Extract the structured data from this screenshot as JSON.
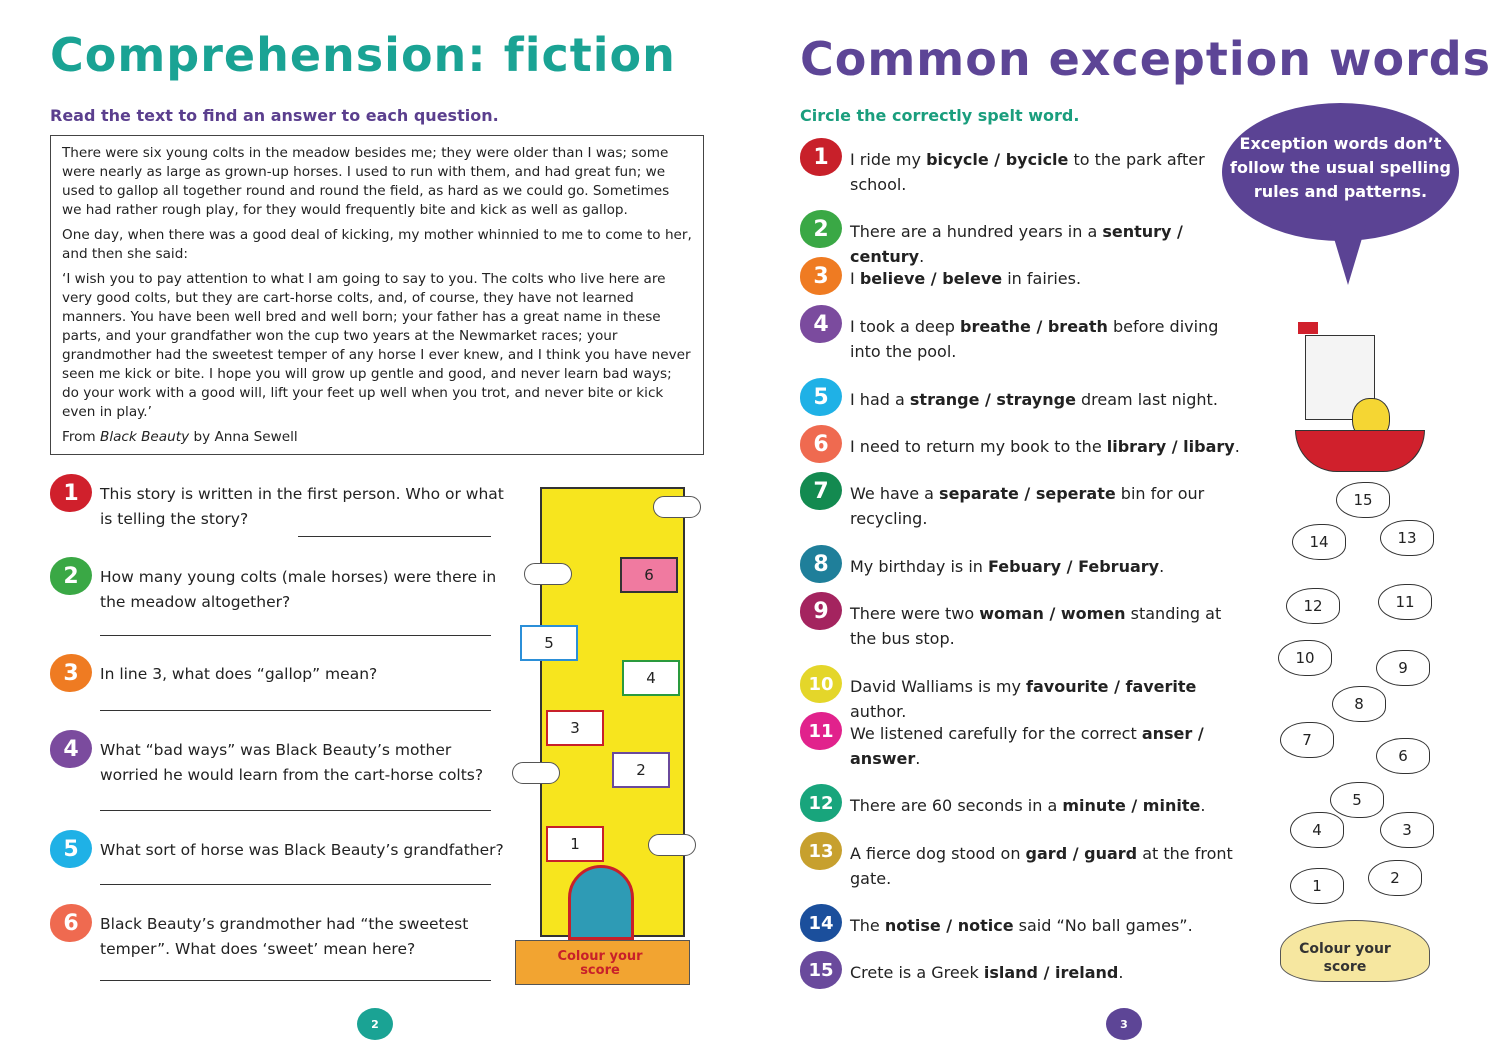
{
  "left": {
    "title": "Comprehension: fiction",
    "subtitle": "Read the text to find an answer to each question.",
    "passage": [
      "There were six young colts in the meadow besides me; they were older than I was; some were nearly as large as grown-up horses. I used to run with them, and had great fun; we used to gallop all together round and round the field, as hard as we could go. Sometimes we had rather rough play, for they would frequently bite and kick as well as gallop.",
      "One day, when there was a good deal of kicking, my mother whinnied to me to come to her, and then she said:",
      "‘I wish you to pay attention to what I am going to say to you. The colts who live here are very good colts, but they are cart-horse colts, and, of course, they have not learned manners. You have been well bred and well born; your father has a great name in these parts, and your grandfather won the cup two years at the Newmarket races; your grandmother had the sweetest temper of any horse I ever knew, and I think you have never seen me kick or bite. I hope you will grow up gentle and good, and never learn bad ways; do your work with a good will, lift your feet up well when you trot, and never bite or kick even in play.’"
    ],
    "source": {
      "prefix": "From ",
      "book": "Black Beauty",
      "suffix": " by Anna Sewell"
    },
    "questions": [
      {
        "num": "1",
        "color": "#d0202c",
        "text": "This story is written in the first person. Who or what is telling the story?"
      },
      {
        "num": "2",
        "color": "#3aa845",
        "text": "How many young colts (male horses) were there in the meadow altogether?"
      },
      {
        "num": "3",
        "color": "#ef7b22",
        "text": "In line 3, what does “gallop” mean?"
      },
      {
        "num": "4",
        "color": "#7b4b9e",
        "text": "What “bad ways” was Black Beauty’s mother worried he would learn from the cart-horse colts?"
      },
      {
        "num": "5",
        "color": "#1fb1e6",
        "text": "What sort of horse was Black Beauty’s grandfather?"
      },
      {
        "num": "6",
        "color": "#ef6a50",
        "text": "Black Beauty’s grandmother had “the sweetest temper”. What does ‘sweet’ mean here?"
      }
    ],
    "score_label": "Colour your score",
    "scrolls": [
      "1",
      "2",
      "3",
      "4",
      "5",
      "6"
    ],
    "page": "2",
    "title_color": "#1aa394",
    "subtitle_color": "#5b3f8e"
  },
  "right": {
    "title": "Common exception words",
    "subtitle": "Circle the correctly spelt word.",
    "bubble": "Exception words don’t follow the usual spelling rules and patterns.",
    "items": [
      {
        "num": "1",
        "color": "#c8202a",
        "pre": "I ride my ",
        "bold": "bicycle / bycicle",
        "post": " to the park after school."
      },
      {
        "num": "2",
        "color": "#3aa845",
        "pre": "There are a hundred years in a ",
        "bold": "sentury / century",
        "post": "."
      },
      {
        "num": "3",
        "color": "#ef7b22",
        "pre": "I ",
        "bold": "believe / beleve",
        "post": " in fairies."
      },
      {
        "num": "4",
        "color": "#7b4b9e",
        "pre": "I took a deep ",
        "bold": "breathe / breath",
        "post": " before diving into the pool."
      },
      {
        "num": "5",
        "color": "#1fb1e6",
        "pre": "I had a ",
        "bold": "strange / straynge",
        "post": " dream last night."
      },
      {
        "num": "6",
        "color": "#ef6a50",
        "pre": "I need to return my book to the ",
        "bold": "library / libary",
        "post": "."
      },
      {
        "num": "7",
        "color": "#138a50",
        "pre": "We have a ",
        "bold": "separate / seperate",
        "post": " bin for our recycling."
      },
      {
        "num": "8",
        "color": "#1f7f9a",
        "pre": "My birthday is in ",
        "bold": "Febuary / February",
        "post": "."
      },
      {
        "num": "9",
        "color": "#a4245f",
        "pre": "There were two ",
        "bold": "woman / women",
        "post": " standing at the bus stop."
      },
      {
        "num": "10",
        "color": "#e4d62a",
        "pre": "David Walliams is my ",
        "bold": "favourite / faverite",
        "post": " author."
      },
      {
        "num": "11",
        "color": "#e1228c",
        "pre": "We listened carefully for the correct ",
        "bold": "anser / answer",
        "post": "."
      },
      {
        "num": "12",
        "color": "#18a57c",
        "pre": "There are 60 seconds in a ",
        "bold": "minute / minite",
        "post": "."
      },
      {
        "num": "13",
        "color": "#c7a02e",
        "pre": "A fierce dog stood on ",
        "bold": "gard / guard",
        "post": " at the front gate."
      },
      {
        "num": "14",
        "color": "#1b4f9c",
        "pre": "The ",
        "bold": "notise / notice",
        "post": " said “No ball games”."
      },
      {
        "num": "15",
        "color": "#6a4a9c",
        "pre": "Crete is a Greek ",
        "bold": "island / ireland",
        "post": "."
      }
    ],
    "fish": [
      "1",
      "2",
      "3",
      "4",
      "5",
      "6",
      "7",
      "8",
      "9",
      "10",
      "11",
      "12",
      "13",
      "14",
      "15"
    ],
    "score_label": "Colour your score",
    "page": "3",
    "title_color": "#5d4596",
    "subtitle_color": "#1a9e7d"
  }
}
